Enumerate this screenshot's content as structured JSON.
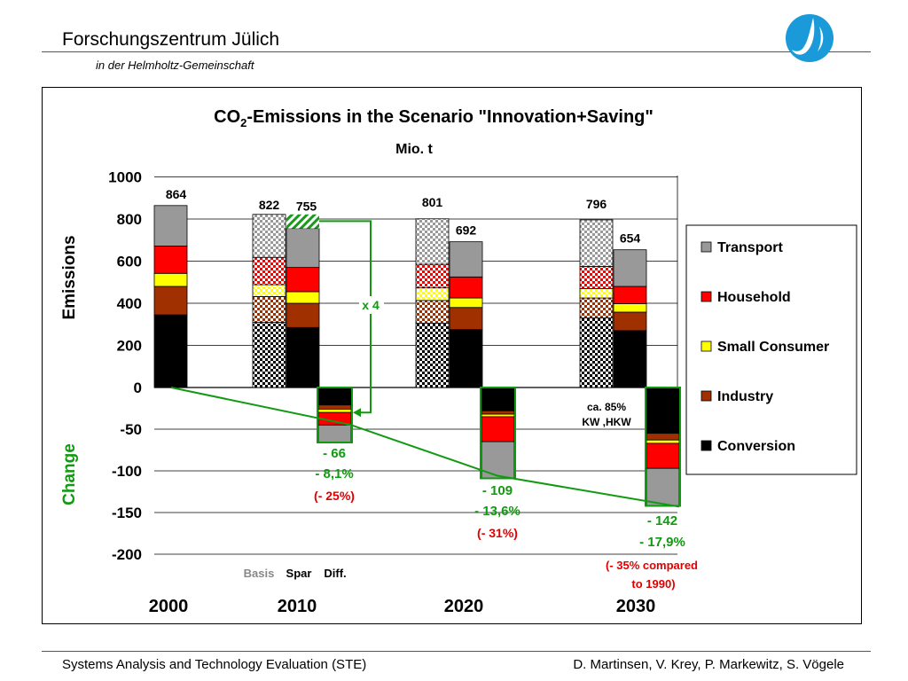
{
  "header": {
    "org_title": "Forschungszentrum Jülich",
    "org_subtitle": "in der Helmholtz-Gemeinschaft",
    "logo_icon": "fz-juelich-logo-icon"
  },
  "footer": {
    "left": "Systems Analysis and Technology Evaluation (STE)",
    "right": "D. Martinsen, V. Krey, P. Markewitz, S. Vögele"
  },
  "chart_data": {
    "type": "bar",
    "title_main": "CO",
    "title_sub": "2",
    "title_rest": "-Emissions in the Scenario \"Innovation+Saving\"",
    "unit_label": "Mio. t",
    "ylabel_top": "Emissions",
    "ylabel_bottom": "Change",
    "ylim": [
      -200,
      1000
    ],
    "yticks": [
      "1000",
      "800",
      "600",
      "400",
      "200",
      "0",
      "-50",
      "-100",
      "-150",
      "-200"
    ],
    "grid": true,
    "legend_position": "right",
    "series": [
      {
        "name": "Transport",
        "color": "#999999"
      },
      {
        "name": "Household",
        "color": "#ff0000"
      },
      {
        "name": "Small Consumer",
        "color": "#ffff00"
      },
      {
        "name": "Industry",
        "color": "#a03000"
      },
      {
        "name": "Conversion",
        "color": "#000000"
      }
    ],
    "years": [
      "2000",
      "2010",
      "2020",
      "2030"
    ],
    "bar_type_labels": [
      "Basis",
      "Spar",
      "Diff."
    ],
    "stacks": [
      {
        "year": "2000",
        "kind": "basis",
        "total_label": "864",
        "values": {
          "Conversion": 345,
          "Industry": 135,
          "Small Consumer": 62,
          "Household": 130,
          "Transport": 192
        }
      },
      {
        "year": "2010",
        "kind": "reference",
        "total_label": "822",
        "values": {
          "Conversion": 310,
          "Industry": 122,
          "Small Consumer": 56,
          "Household": 130,
          "Transport": 204
        }
      },
      {
        "year": "2010",
        "kind": "saving",
        "total_label": "755",
        "values": {
          "Conversion": 285,
          "Industry": 115,
          "Small Consumer": 55,
          "Household": 115,
          "Transport": 185
        }
      },
      {
        "year": "2020",
        "kind": "reference",
        "total_label": "801",
        "values": {
          "Conversion": 305,
          "Industry": 108,
          "Small Consumer": 60,
          "Household": 112,
          "Transport": 216
        }
      },
      {
        "year": "2020",
        "kind": "saving",
        "total_label": "692",
        "values": {
          "Conversion": 275,
          "Industry": 105,
          "Small Consumer": 45,
          "Household": 100,
          "Transport": 167
        }
      },
      {
        "year": "2030",
        "kind": "reference",
        "total_label": "796",
        "values": {
          "Conversion": 330,
          "Industry": 95,
          "Small Consumer": 45,
          "Household": 105,
          "Transport": 221
        }
      },
      {
        "year": "2030",
        "kind": "saving",
        "total_label": "654",
        "values": {
          "Conversion": 270,
          "Industry": 88,
          "Small Consumer": 40,
          "Household": 82,
          "Transport": 174
        }
      }
    ],
    "differences": [
      {
        "year": "2010",
        "values": {
          "Conversion": -21,
          "Industry": -5,
          "Small Consumer": -4,
          "Household": -15,
          "Transport": -21
        },
        "abs_label": "- 66",
        "pct_label": "- 8,1%",
        "pct1990_label": "(- 25%)"
      },
      {
        "year": "2020",
        "values": {
          "Conversion": -28,
          "Industry": -4,
          "Small Consumer": -3,
          "Household": -30,
          "Transport": -44
        },
        "abs_label": "- 109",
        "pct_label": "- 13,6%",
        "pct1990_label": "(- 31%)"
      },
      {
        "year": "2030",
        "values": {
          "Conversion": -55,
          "Industry": -8,
          "Small Consumer": -4,
          "Household": -30,
          "Transport": -45
        },
        "abs_label": "- 142",
        "pct_label": "- 17,9%",
        "pct1990_label_a": "(- 35% compared",
        "pct1990_label_b": "to 1990)"
      }
    ],
    "annotations": {
      "multiplier": "x 4",
      "share_note_a": "ca. 85%",
      "share_note_b": "KW ,HKW"
    }
  }
}
